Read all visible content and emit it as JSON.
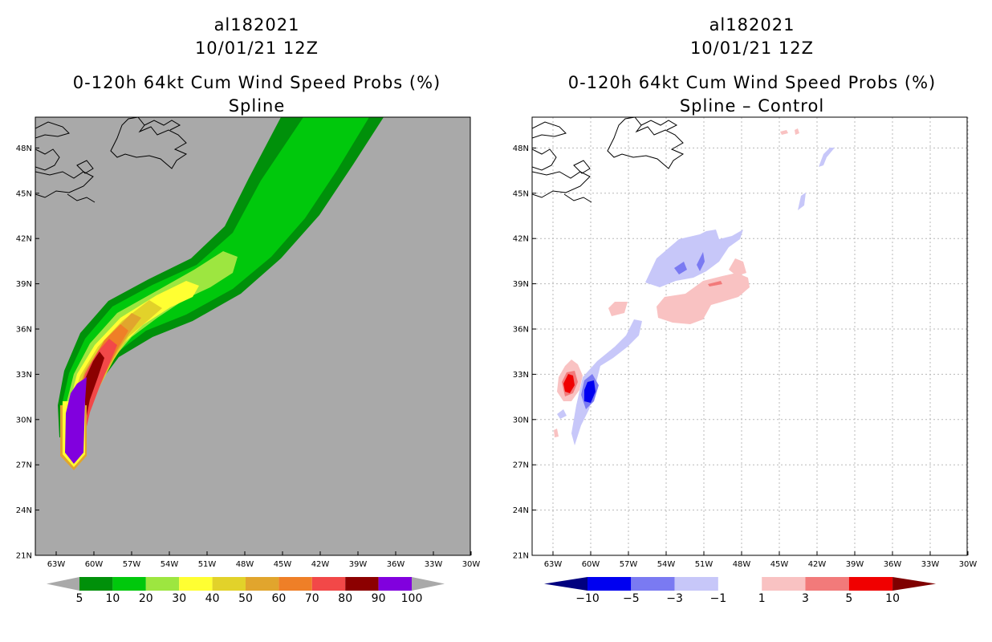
{
  "panels": [
    {
      "storm_id": "al182021",
      "datetime": "10/01/21 12Z",
      "product": "0-120h 64kt Cum Wind Speed Probs (%)",
      "subtitle": "Spline",
      "background_color": "#a9a9a9"
    },
    {
      "storm_id": "al182021",
      "datetime": "10/01/21 12Z",
      "product": "0-120h 64kt Cum Wind Speed Probs (%)",
      "subtitle": "Spline – Control",
      "background_color": "#ffffff"
    }
  ],
  "axes": {
    "lon_labels": [
      "63W",
      "60W",
      "57W",
      "54W",
      "51W",
      "48W",
      "45W",
      "42W",
      "39W",
      "36W",
      "33W",
      "30W"
    ],
    "lat_labels": [
      "21N",
      "24N",
      "27N",
      "30N",
      "33N",
      "36N",
      "39N",
      "42N",
      "45N",
      "48N"
    ]
  },
  "colorbars": {
    "left": {
      "labels": [
        "5",
        "10",
        "20",
        "30",
        "40",
        "50",
        "60",
        "70",
        "80",
        "90",
        "100"
      ],
      "colors": [
        "#a9a9a9",
        "#00900a",
        "#00c80c",
        "#9de640",
        "#ffff32",
        "#e2d22a",
        "#e1a52d",
        "#ef7f27",
        "#f24848",
        "#8c0000",
        "#8100de",
        "#a9a9a9"
      ]
    },
    "right": {
      "labels": [
        "−10",
        "−5",
        "−3",
        "−1",
        "1",
        "3",
        "5",
        "10"
      ],
      "colors": [
        "#00007f",
        "#0000f0",
        "#7a7af2",
        "#c7c7f9",
        "#ffffff",
        "#f9c2c2",
        "#f27a7a",
        "#f00000",
        "#7f0000"
      ]
    }
  }
}
